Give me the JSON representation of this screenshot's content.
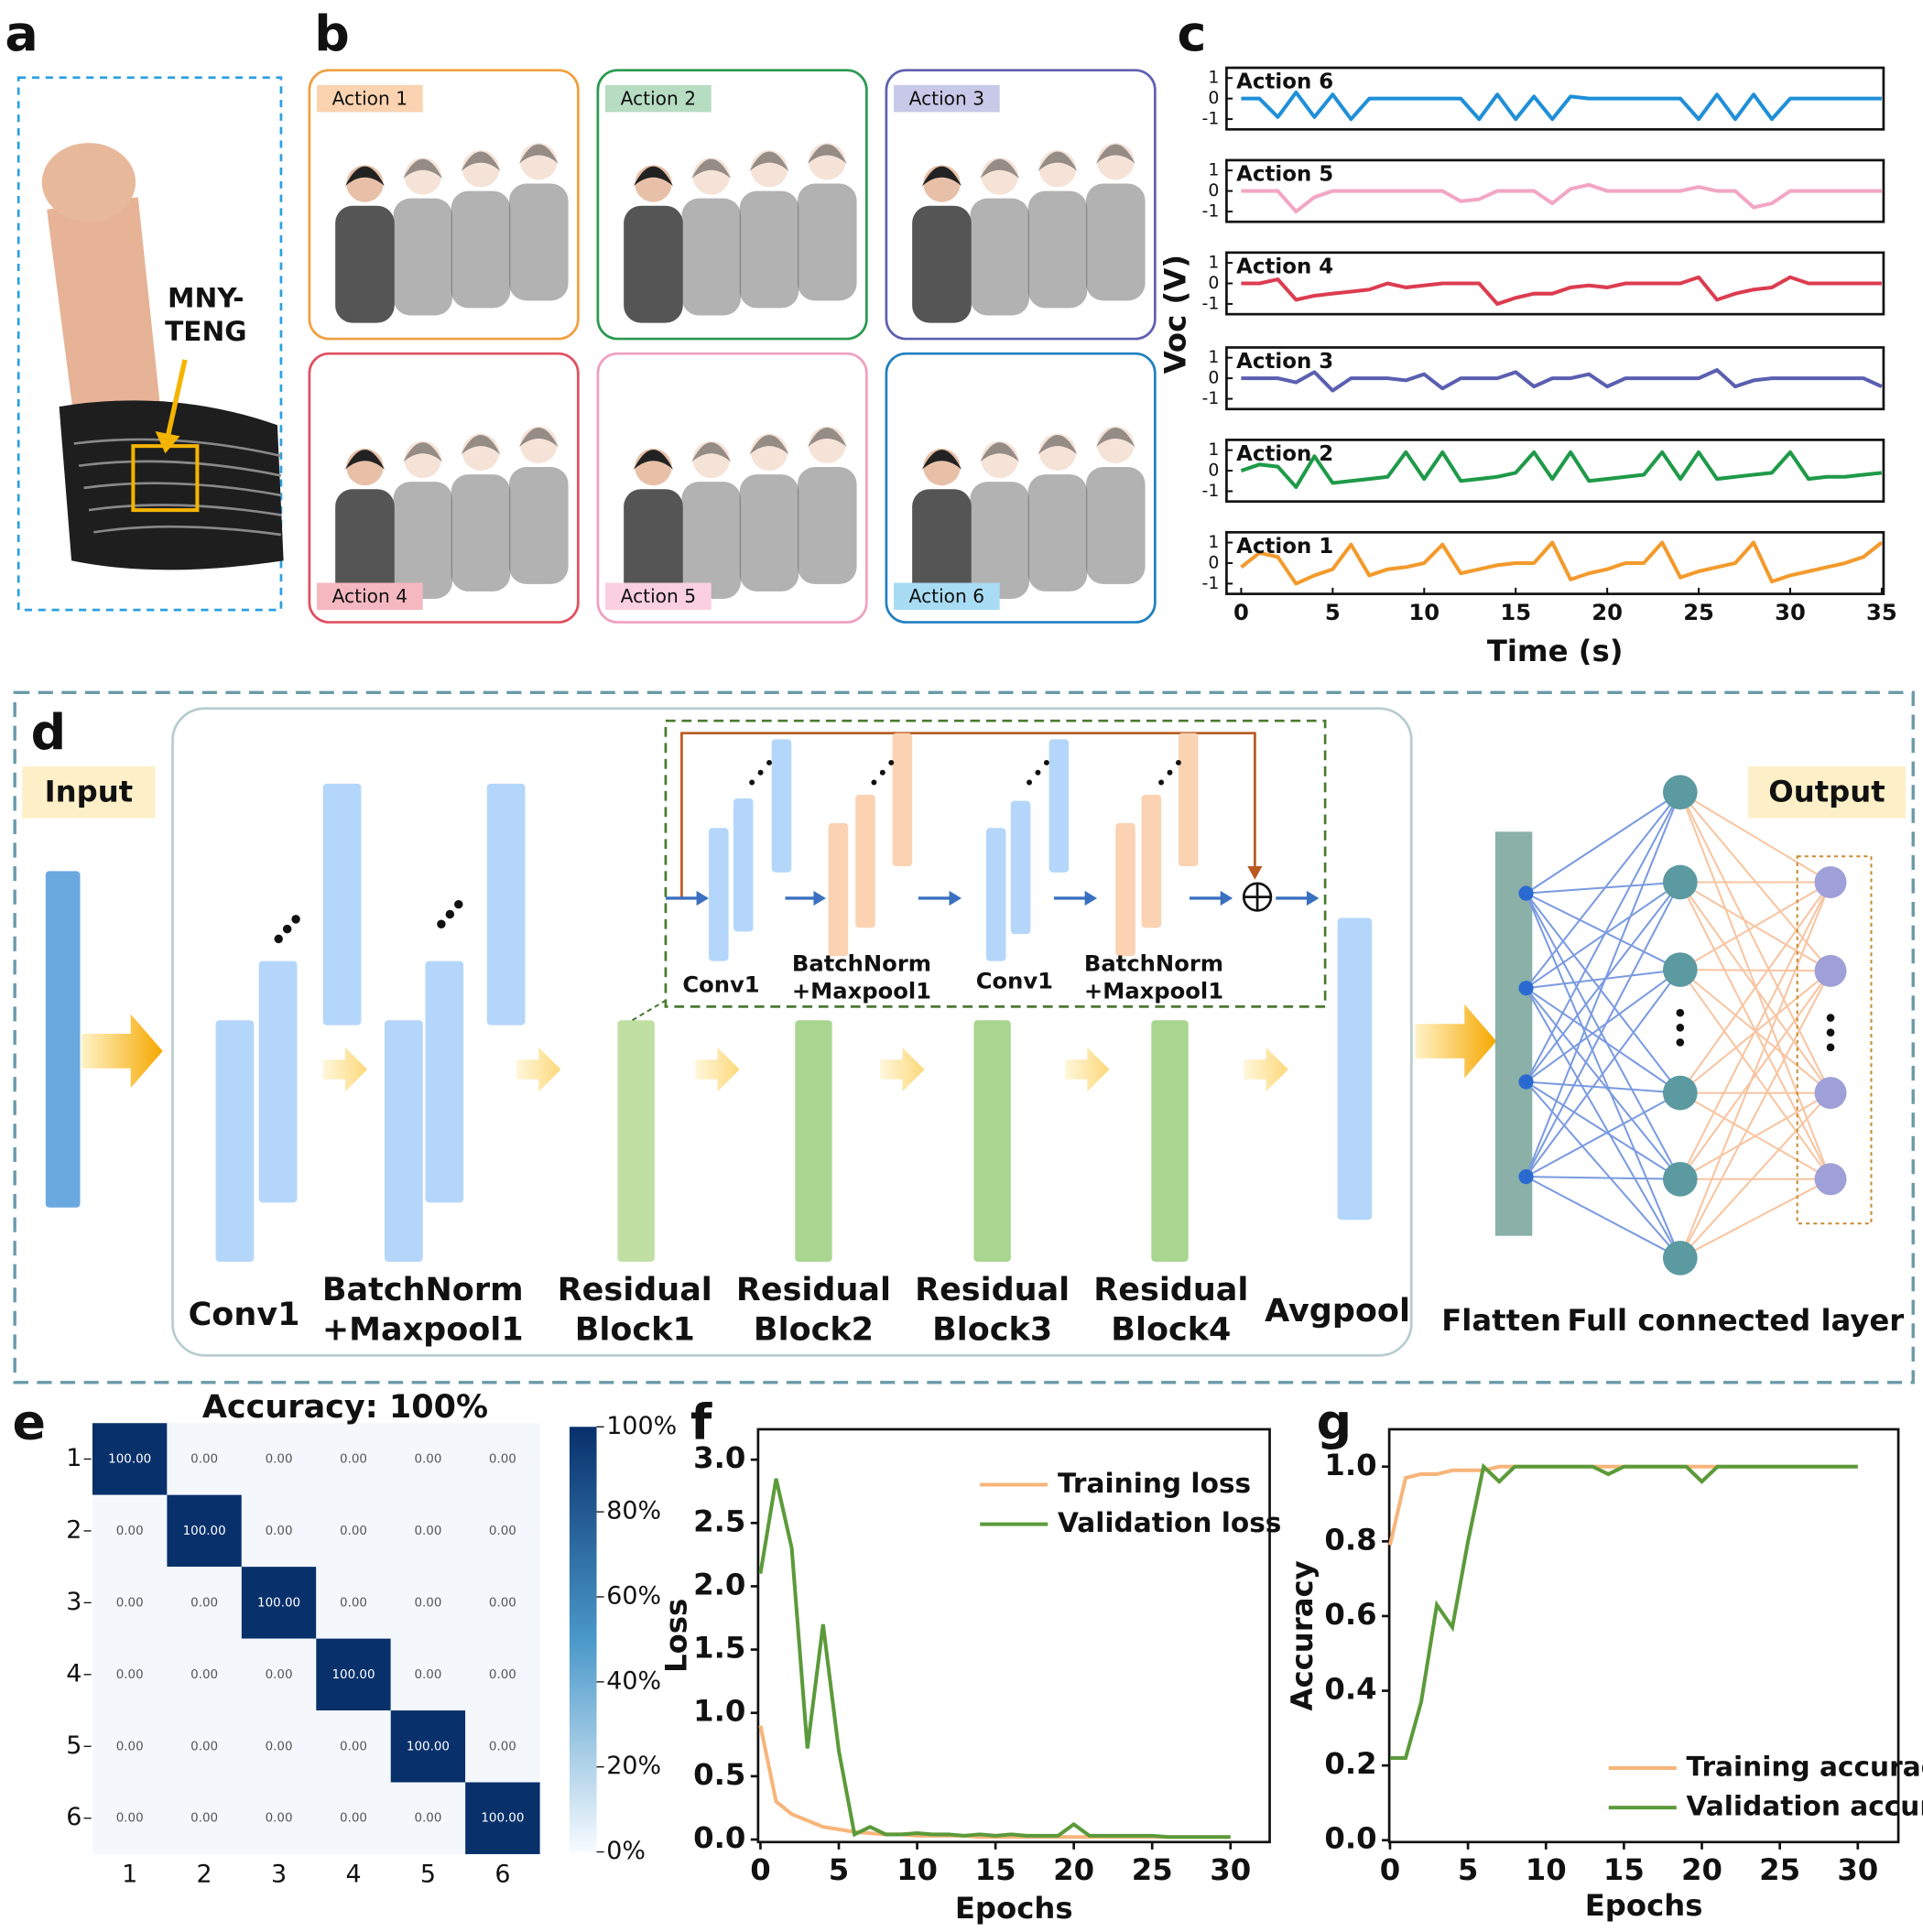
{
  "figure": {
    "panel_labels": [
      "a",
      "b",
      "c",
      "d",
      "e",
      "f",
      "g"
    ]
  },
  "panel_a": {
    "sensor_label": [
      "MNY-",
      "TENG"
    ]
  },
  "panel_b": {
    "actions": [
      "Action 1",
      "Action 2",
      "Action 3",
      "Action 4",
      "Action 5",
      "Action 6"
    ]
  },
  "panel_d": {
    "input": "Input",
    "output": "Output",
    "stages": [
      [
        "Conv1"
      ],
      [
        "BatchNorm",
        "+Maxpool1"
      ],
      [
        "Residual",
        "Block1"
      ],
      [
        "Residual",
        "Block2"
      ],
      [
        "Residual",
        "Block3"
      ],
      [
        "Residual",
        "Block4"
      ],
      [
        "Avgpool"
      ]
    ],
    "residual_detail": [
      [
        "Conv1"
      ],
      [
        "BatchNorm",
        "+Maxpool1"
      ],
      [
        "Conv1"
      ],
      [
        "BatchNorm",
        "+Maxpool1"
      ]
    ],
    "flatten": "Flatten",
    "fc": "Full connected layer"
  },
  "chart_data": [
    {
      "type": "line",
      "ylabel": "Voc (V)",
      "xlabel": "Time (s)",
      "xlim": [
        -0.8,
        35.1
      ],
      "xticks": [
        0,
        5,
        10,
        15,
        20,
        25,
        30,
        35
      ],
      "x": [
        0,
        1,
        2,
        3,
        4,
        5,
        6,
        7,
        8,
        9,
        10,
        11,
        12,
        13,
        14,
        15,
        16,
        17,
        18,
        19,
        20,
        21,
        22,
        23,
        24,
        25,
        26,
        27,
        28,
        29,
        30,
        31,
        32,
        33,
        34,
        35
      ],
      "series": [
        {
          "name": "Action 6",
          "color": "#1f8fd8",
          "ylim": [
            -1.5,
            1.5
          ],
          "yticks": [
            1,
            0,
            -1
          ],
          "values": [
            0,
            0,
            -0.9,
            0.3,
            -0.9,
            0.2,
            -1,
            0,
            0,
            0,
            0,
            0,
            0,
            -1,
            0.2,
            -1,
            0.1,
            -1,
            0.1,
            0,
            0,
            0,
            0,
            0,
            0,
            -1,
            0.2,
            -1,
            0.2,
            -1,
            0,
            0,
            0,
            0,
            0,
            0
          ]
        },
        {
          "name": "Action 5",
          "color": "#f2a6c4",
          "ylim": [
            -1.5,
            1.5
          ],
          "yticks": [
            1,
            0,
            -1
          ],
          "values": [
            0,
            0,
            0,
            -1,
            -0.3,
            0,
            0,
            0,
            0,
            0,
            0,
            0,
            -0.5,
            -0.4,
            0,
            0,
            0,
            -0.6,
            0.1,
            0.3,
            0,
            0,
            0,
            0,
            0,
            0.2,
            0,
            0,
            -0.8,
            -0.6,
            0,
            0,
            0,
            0,
            0,
            0
          ]
        },
        {
          "name": "Action 4",
          "color": "#dc3c50",
          "ylim": [
            -1.5,
            1.5
          ],
          "yticks": [
            1,
            0,
            -1
          ],
          "values": [
            0,
            0,
            0.2,
            -0.8,
            -0.6,
            -0.5,
            -0.4,
            -0.3,
            0,
            -0.2,
            -0.1,
            0,
            0,
            0,
            -1,
            -0.7,
            -0.5,
            -0.5,
            -0.2,
            -0.1,
            -0.2,
            0,
            0,
            0,
            0,
            0.3,
            -0.8,
            -0.5,
            -0.3,
            -0.2,
            0.3,
            0,
            0,
            0,
            0,
            0
          ]
        },
        {
          "name": "Action 3",
          "color": "#5a5fb0",
          "ylim": [
            -1.5,
            1.5
          ],
          "yticks": [
            1,
            0,
            -1
          ],
          "values": [
            0,
            0,
            0,
            -0.2,
            0.3,
            -0.6,
            0,
            0,
            0,
            -0.1,
            0.2,
            -0.5,
            0,
            0,
            0,
            0.3,
            -0.4,
            0,
            0,
            0.2,
            -0.4,
            0,
            0,
            0,
            0,
            0,
            0.4,
            -0.4,
            -0.1,
            0,
            0,
            0,
            0,
            0,
            0,
            -0.4
          ]
        },
        {
          "name": "Action 2",
          "color": "#1e9a48",
          "ylim": [
            -1.5,
            1.5
          ],
          "yticks": [
            1,
            0,
            -1
          ],
          "values": [
            0,
            0.3,
            0.2,
            -0.8,
            0.7,
            -0.6,
            -0.5,
            -0.4,
            -0.3,
            0.9,
            -0.4,
            0.9,
            -0.5,
            -0.4,
            -0.3,
            -0.1,
            0.9,
            -0.4,
            0.9,
            -0.5,
            -0.4,
            -0.3,
            -0.2,
            0.9,
            -0.4,
            0.9,
            -0.4,
            -0.3,
            -0.2,
            -0.1,
            0.9,
            -0.4,
            -0.3,
            -0.3,
            -0.2,
            -0.1
          ]
        },
        {
          "name": "Action 1",
          "color": "#f39a2c",
          "ylim": [
            -1.5,
            1.5
          ],
          "yticks": [
            1,
            0,
            -1
          ],
          "values": [
            -0.2,
            0.5,
            0.3,
            -1,
            -0.6,
            -0.3,
            0.9,
            -0.6,
            -0.3,
            -0.2,
            0,
            0.9,
            -0.5,
            -0.3,
            -0.1,
            0,
            0,
            1,
            -0.8,
            -0.5,
            -0.3,
            0,
            0,
            1,
            -0.7,
            -0.4,
            -0.2,
            0,
            1,
            -0.9,
            -0.6,
            -0.4,
            -0.2,
            0,
            0.3,
            1
          ]
        }
      ]
    },
    {
      "type": "heatmap",
      "title": "Accuracy: 100%",
      "x_categories": [
        "1",
        "2",
        "3",
        "4",
        "5",
        "6"
      ],
      "y_categories": [
        "1",
        "2",
        "3",
        "4",
        "5",
        "6"
      ],
      "values": [
        [
          100,
          0,
          0,
          0,
          0,
          0
        ],
        [
          0,
          100,
          0,
          0,
          0,
          0
        ],
        [
          0,
          0,
          100,
          0,
          0,
          0
        ],
        [
          0,
          0,
          0,
          100,
          0,
          0
        ],
        [
          0,
          0,
          0,
          0,
          100,
          0
        ],
        [
          0,
          0,
          0,
          0,
          0,
          100
        ]
      ],
      "value_labels": [
        [
          "100.00",
          "0.00",
          "0.00",
          "0.00",
          "0.00",
          "0.00"
        ],
        [
          "0.00",
          "100.00",
          "0.00",
          "0.00",
          "0.00",
          "0.00"
        ],
        [
          "0.00",
          "0.00",
          "100.00",
          "0.00",
          "0.00",
          "0.00"
        ],
        [
          "0.00",
          "0.00",
          "0.00",
          "100.00",
          "0.00",
          "0.00"
        ],
        [
          "0.00",
          "0.00",
          "0.00",
          "0.00",
          "100.00",
          "0.00"
        ],
        [
          "0.00",
          "0.00",
          "0.00",
          "0.00",
          "0.00",
          "100.00"
        ]
      ],
      "colors": [
        "#ffffff",
        "#08306b"
      ],
      "clim": [
        0,
        100
      ],
      "colorbar_ticks": [
        {
          "value": 100,
          "label": "100%"
        },
        {
          "value": 80,
          "label": "80%"
        },
        {
          "value": 60,
          "label": "60%"
        },
        {
          "value": 40,
          "label": "40%"
        },
        {
          "value": 20,
          "label": "20%"
        },
        {
          "value": 0,
          "label": "0%"
        }
      ]
    },
    {
      "type": "line",
      "xlabel": "Epochs",
      "ylabel": "Loss",
      "legend": "upper right",
      "xlim": [
        -0.15,
        32.5
      ],
      "ylim": [
        -0.02,
        3.24
      ],
      "xticks": [
        0,
        5,
        10,
        15,
        20,
        25,
        30
      ],
      "yticks": [
        {
          "value": 0,
          "label": "0.0"
        },
        0.5,
        {
          "value": 1,
          "label": "1.0"
        },
        1.5,
        {
          "value": 2,
          "label": "2.0"
        },
        2.5,
        {
          "value": 3,
          "label": "3.0"
        }
      ],
      "x": [
        0,
        1,
        2,
        3,
        4,
        5,
        6,
        7,
        8,
        9,
        10,
        11,
        12,
        13,
        14,
        15,
        16,
        17,
        18,
        19,
        20,
        21,
        22,
        23,
        24,
        25,
        26,
        27,
        28,
        29,
        30
      ],
      "series": [
        {
          "name": "Training loss",
          "color": "#f7b57a",
          "values": [
            0.9,
            0.3,
            0.2,
            0.15,
            0.1,
            0.08,
            0.06,
            0.05,
            0.04,
            0.04,
            0.03,
            0.03,
            0.03,
            0.03,
            0.02,
            0.02,
            0.02,
            0.02,
            0.02,
            0.02,
            0.02,
            0.02,
            0.02,
            0.02,
            0.02,
            0.02,
            0.02,
            0.02,
            0.02,
            0.02,
            0.02
          ]
        },
        {
          "name": "Validation loss",
          "color": "#5b9a3a",
          "values": [
            2.1,
            2.85,
            2.3,
            0.72,
            1.7,
            0.7,
            0.04,
            0.1,
            0.04,
            0.04,
            0.05,
            0.04,
            0.04,
            0.03,
            0.04,
            0.03,
            0.04,
            0.03,
            0.03,
            0.03,
            0.12,
            0.03,
            0.03,
            0.03,
            0.03,
            0.03,
            0.02,
            0.02,
            0.02,
            0.02,
            0.02
          ]
        }
      ]
    },
    {
      "type": "line",
      "xlabel": "Epochs",
      "ylabel": "Accuracy",
      "legend": "lower right",
      "xlim": [
        -0.05,
        32.6
      ],
      "ylim": [
        -0.005,
        1.1
      ],
      "xticks": [
        0,
        5,
        10,
        15,
        20,
        25,
        30
      ],
      "yticks": [
        {
          "value": 0,
          "label": "0.0"
        },
        0.2,
        0.4,
        0.6,
        0.8,
        {
          "value": 1,
          "label": "1.0"
        }
      ],
      "x": [
        0,
        1,
        2,
        3,
        4,
        5,
        6,
        7,
        8,
        9,
        10,
        11,
        12,
        13,
        14,
        15,
        16,
        17,
        18,
        19,
        20,
        21,
        22,
        23,
        24,
        25,
        26,
        27,
        28,
        29,
        30
      ],
      "series": [
        {
          "name": "Training accuracy",
          "color": "#f7b57a",
          "values": [
            0.79,
            0.97,
            0.98,
            0.98,
            0.99,
            0.99,
            0.99,
            1,
            1,
            1,
            1,
            1,
            1,
            1,
            1,
            1,
            1,
            1,
            1,
            1,
            1,
            1,
            1,
            1,
            1,
            1,
            1,
            1,
            1,
            1,
            1
          ]
        },
        {
          "name": "Validation accuracy",
          "color": "#5b9a3a",
          "values": [
            0.22,
            0.22,
            0.37,
            0.63,
            0.57,
            0.8,
            1,
            0.96,
            1,
            1,
            1,
            1,
            1,
            1,
            0.98,
            1,
            1,
            1,
            1,
            1,
            0.96,
            1,
            1,
            1,
            1,
            1,
            1,
            1,
            1,
            1,
            1
          ]
        }
      ]
    }
  ]
}
